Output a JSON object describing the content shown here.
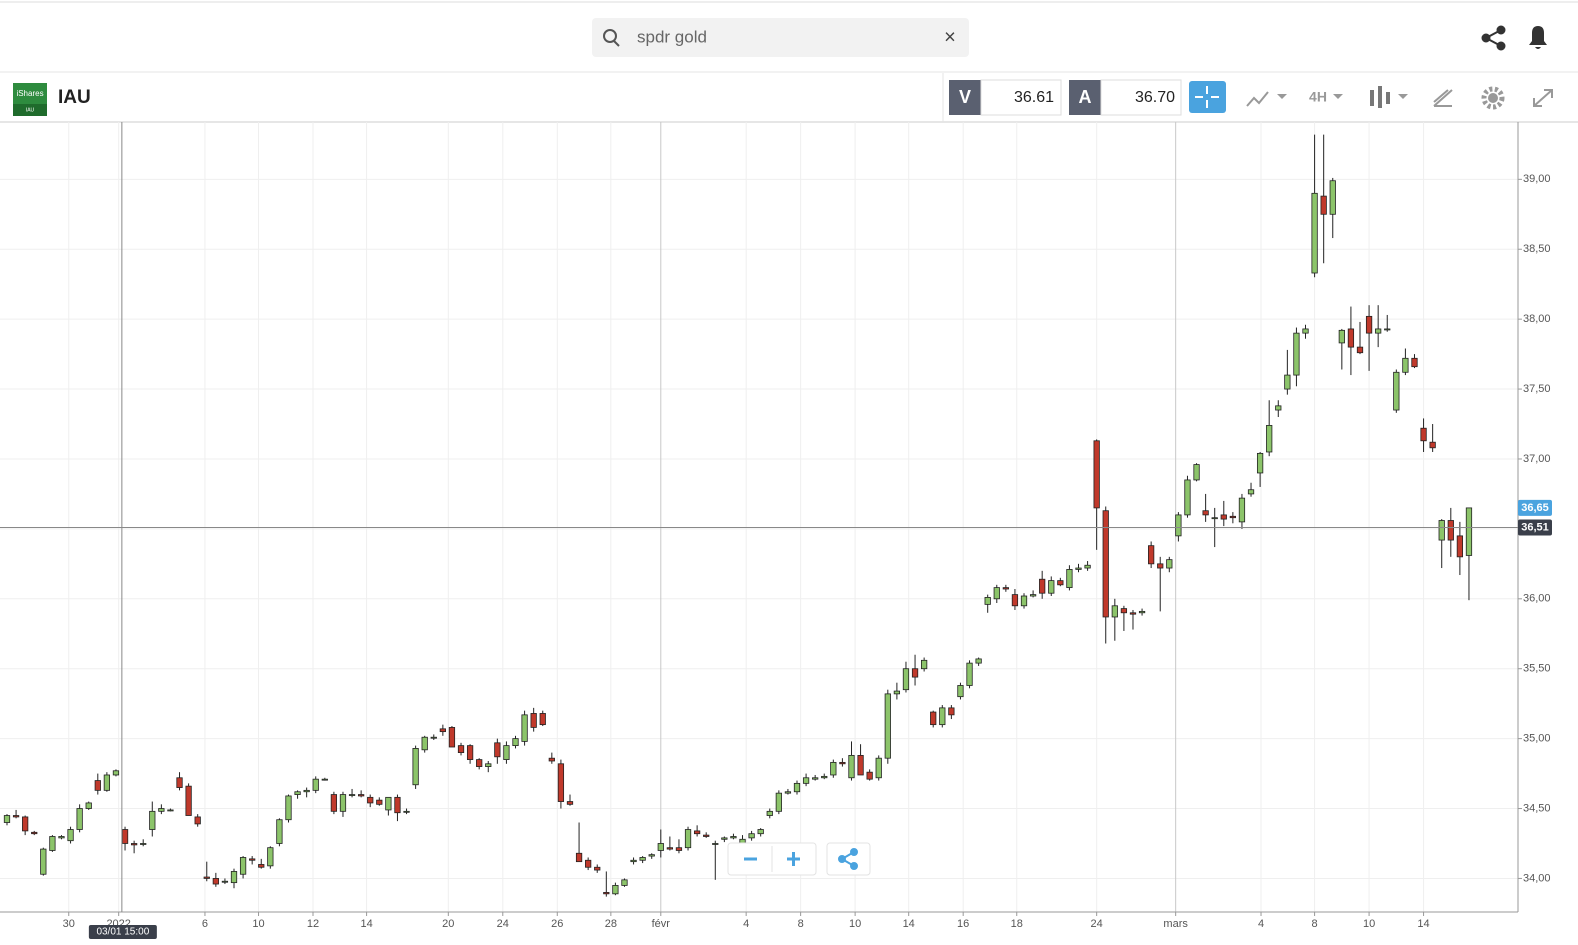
{
  "header": {
    "search_text": "spdr gold",
    "search_clear": "×"
  },
  "instrument": {
    "symbol": "IAU",
    "logo_text": "iShares",
    "logo_sub": "IAU",
    "sell_label": "V",
    "sell_price": "36.61",
    "buy_label": "A",
    "buy_price": "36.70",
    "timeframe": "4H"
  },
  "chart_data": {
    "type": "candlestick",
    "up_color": "#8cc46a",
    "down_color": "#c0392b",
    "grid": true,
    "ylim": [
      33.76,
      39.41
    ],
    "xlim": [
      -0.77,
      166.4
    ],
    "yticks": [
      {
        "value": 34,
        "label": "34,00"
      },
      {
        "value": 34.5,
        "label": "34,50"
      },
      {
        "value": 35,
        "label": "35,00"
      },
      {
        "value": 35.5,
        "label": "35,50"
      },
      {
        "value": 36,
        "label": "36,00"
      },
      {
        "value": 36.5,
        "label": "36,50"
      },
      {
        "value": 37,
        "label": "37,00"
      },
      {
        "value": 37.5,
        "label": "37,50"
      },
      {
        "value": 38,
        "label": "38,00"
      },
      {
        "value": 38.5,
        "label": "38,50"
      },
      {
        "value": 39,
        "label": "39,00"
      }
    ],
    "xticks": [
      {
        "value": 6.8,
        "label": "30"
      },
      {
        "value": 12.3,
        "label": "2022"
      },
      {
        "value": 21.8,
        "label": "6"
      },
      {
        "value": 27.7,
        "label": "10"
      },
      {
        "value": 33.7,
        "label": "12"
      },
      {
        "value": 39.6,
        "label": "14"
      },
      {
        "value": 48.6,
        "label": "20"
      },
      {
        "value": 54.6,
        "label": "24"
      },
      {
        "value": 60.6,
        "label": "26"
      },
      {
        "value": 66.5,
        "label": "28"
      },
      {
        "value": 72,
        "label": "févr"
      },
      {
        "value": 81.4,
        "label": "4"
      },
      {
        "value": 87.4,
        "label": "8"
      },
      {
        "value": 93.4,
        "label": "10"
      },
      {
        "value": 99.3,
        "label": "14"
      },
      {
        "value": 105.3,
        "label": "16"
      },
      {
        "value": 111.2,
        "label": "18"
      },
      {
        "value": 120,
        "label": "24"
      },
      {
        "value": 128.7,
        "label": "mars"
      },
      {
        "value": 138.1,
        "label": "4"
      },
      {
        "value": 144,
        "label": "8"
      },
      {
        "value": 150,
        "label": "10"
      },
      {
        "value": 156,
        "label": "14"
      }
    ],
    "last_price": {
      "value": 36.65,
      "label": "36,65"
    },
    "crosshair": {
      "y": {
        "value": 36.51,
        "label": "36,51"
      },
      "x": {
        "value": 12.65,
        "label": "03/01 15:00"
      }
    },
    "ohlc": [
      [
        34.4,
        34.46,
        34.38,
        34.45
      ],
      [
        34.45,
        34.49,
        34.43,
        34.44
      ],
      [
        34.44,
        34.45,
        34.31,
        34.34
      ],
      [
        34.33,
        34.34,
        34.31,
        34.32
      ],
      [
        34.03,
        34.22,
        34.02,
        34.21
      ],
      [
        34.2,
        34.31,
        34.19,
        34.3
      ],
      [
        34.29,
        34.31,
        34.28,
        34.3
      ],
      [
        34.27,
        34.37,
        34.25,
        34.35
      ],
      [
        34.35,
        34.53,
        34.33,
        34.5
      ],
      [
        34.5,
        34.55,
        34.49,
        34.54
      ],
      [
        34.7,
        34.75,
        34.6,
        34.63
      ],
      [
        34.63,
        34.76,
        34.62,
        34.74
      ],
      [
        34.74,
        34.78,
        34.73,
        34.77
      ],
      [
        34.35,
        34.37,
        34.2,
        34.25
      ],
      [
        34.25,
        34.27,
        34.18,
        34.24
      ],
      [
        34.25,
        34.28,
        34.23,
        34.25
      ],
      [
        34.35,
        34.55,
        34.3,
        34.48
      ],
      [
        34.48,
        34.53,
        34.46,
        34.5
      ],
      [
        34.49,
        34.5,
        34.48,
        34.49
      ],
      [
        34.72,
        34.76,
        34.63,
        34.65
      ],
      [
        34.66,
        34.68,
        34.45,
        34.45
      ],
      [
        34.44,
        34.46,
        34.37,
        34.39
      ],
      [
        34.01,
        34.12,
        33.98,
        34.0
      ],
      [
        34.0,
        34.04,
        33.94,
        33.96
      ],
      [
        33.98,
        34.0,
        33.96,
        33.98
      ],
      [
        33.97,
        34.07,
        33.93,
        34.05
      ],
      [
        34.03,
        34.16,
        34.0,
        34.15
      ],
      [
        34.14,
        34.16,
        34.1,
        34.13
      ],
      [
        34.1,
        34.14,
        34.07,
        34.08
      ],
      [
        34.09,
        34.23,
        34.07,
        34.22
      ],
      [
        34.25,
        34.43,
        34.23,
        34.42
      ],
      [
        34.42,
        34.6,
        34.4,
        34.59
      ],
      [
        34.6,
        34.63,
        34.57,
        34.62
      ],
      [
        34.62,
        34.65,
        34.58,
        34.63
      ],
      [
        34.63,
        34.73,
        34.61,
        34.71
      ],
      [
        34.71,
        34.72,
        34.7,
        34.71
      ],
      [
        34.6,
        34.62,
        34.46,
        34.48
      ],
      [
        34.48,
        34.62,
        34.44,
        34.6
      ],
      [
        34.6,
        34.64,
        34.58,
        34.6
      ],
      [
        34.6,
        34.63,
        34.58,
        34.59
      ],
      [
        34.58,
        34.6,
        34.51,
        34.54
      ],
      [
        34.56,
        34.58,
        34.52,
        34.53
      ],
      [
        34.49,
        34.58,
        34.45,
        34.58
      ],
      [
        34.58,
        34.6,
        34.41,
        34.47
      ],
      [
        34.48,
        34.5,
        34.46,
        34.48
      ],
      [
        34.67,
        34.95,
        34.64,
        34.93
      ],
      [
        34.92,
        35.02,
        34.9,
        35.01
      ],
      [
        35.01,
        35.03,
        34.99,
        35.01
      ],
      [
        35.07,
        35.1,
        35.02,
        35.05
      ],
      [
        35.08,
        35.09,
        34.94,
        34.94
      ],
      [
        34.95,
        34.97,
        34.88,
        34.9
      ],
      [
        34.95,
        34.96,
        34.82,
        34.85
      ],
      [
        34.85,
        34.86,
        34.78,
        34.8
      ],
      [
        34.8,
        34.84,
        34.76,
        34.82
      ],
      [
        34.97,
        35.0,
        34.82,
        34.87
      ],
      [
        34.85,
        34.98,
        34.82,
        34.95
      ],
      [
        34.95,
        35.02,
        34.93,
        35.0
      ],
      [
        34.98,
        35.2,
        34.95,
        35.17
      ],
      [
        35.18,
        35.22,
        35.05,
        35.08
      ],
      [
        35.18,
        35.2,
        35.09,
        35.1
      ],
      [
        34.86,
        34.9,
        34.82,
        34.84
      ],
      [
        34.82,
        34.85,
        34.5,
        34.55
      ],
      [
        34.55,
        34.6,
        34.52,
        34.53
      ],
      [
        34.18,
        34.4,
        34.12,
        34.12
      ],
      [
        34.13,
        34.15,
        34.06,
        34.08
      ],
      [
        34.08,
        34.1,
        34.04,
        34.06
      ],
      [
        33.9,
        34.05,
        33.87,
        33.89
      ],
      [
        33.89,
        33.97,
        33.88,
        33.95
      ],
      [
        33.95,
        34.0,
        33.94,
        33.99
      ],
      [
        34.12,
        34.15,
        34.1,
        34.13
      ],
      [
        34.13,
        34.16,
        34.11,
        34.15
      ],
      [
        34.16,
        34.18,
        34.14,
        34.17
      ],
      [
        34.2,
        34.35,
        34.15,
        34.25
      ],
      [
        34.22,
        34.3,
        34.2,
        34.21
      ],
      [
        34.22,
        34.28,
        34.18,
        34.2
      ],
      [
        34.22,
        34.37,
        34.2,
        34.35
      ],
      [
        34.34,
        34.38,
        34.3,
        34.32
      ],
      [
        34.31,
        34.33,
        34.29,
        34.3
      ],
      [
        34.25,
        34.27,
        33.99,
        34.25
      ],
      [
        34.28,
        34.3,
        34.26,
        34.29
      ],
      [
        34.29,
        34.32,
        34.28,
        34.3
      ],
      [
        34.2,
        34.31,
        34.19,
        34.28
      ],
      [
        34.29,
        34.34,
        34.27,
        34.32
      ],
      [
        34.32,
        34.36,
        34.3,
        34.35
      ],
      [
        34.45,
        34.5,
        34.43,
        34.48
      ],
      [
        34.48,
        34.63,
        34.46,
        34.61
      ],
      [
        34.61,
        34.64,
        34.6,
        34.62
      ],
      [
        34.62,
        34.7,
        34.6,
        34.68
      ],
      [
        34.68,
        34.75,
        34.66,
        34.72
      ],
      [
        34.71,
        34.74,
        34.7,
        34.72
      ],
      [
        34.72,
        34.75,
        34.71,
        34.73
      ],
      [
        34.74,
        34.85,
        34.72,
        34.83
      ],
      [
        34.83,
        34.86,
        34.8,
        34.82
      ],
      [
        34.72,
        34.98,
        34.7,
        34.88
      ],
      [
        34.88,
        34.96,
        34.74,
        34.74
      ],
      [
        34.76,
        34.78,
        34.7,
        34.71
      ],
      [
        34.72,
        34.88,
        34.7,
        34.86
      ],
      [
        34.86,
        35.35,
        34.82,
        35.32
      ],
      [
        35.32,
        35.4,
        35.28,
        35.34
      ],
      [
        35.35,
        35.55,
        35.33,
        35.5
      ],
      [
        35.5,
        35.6,
        35.38,
        35.44
      ],
      [
        35.5,
        35.58,
        35.48,
        35.56
      ],
      [
        35.19,
        35.2,
        35.08,
        35.1
      ],
      [
        35.1,
        35.24,
        35.08,
        35.22
      ],
      [
        35.22,
        35.24,
        35.14,
        35.17
      ],
      [
        35.3,
        35.4,
        35.28,
        35.38
      ],
      [
        35.38,
        35.56,
        35.36,
        35.54
      ],
      [
        35.54,
        35.58,
        35.52,
        35.57
      ],
      [
        35.96,
        36.03,
        35.9,
        36.01
      ],
      [
        36.0,
        36.1,
        35.97,
        36.08
      ],
      [
        36.08,
        36.1,
        36.05,
        36.07
      ],
      [
        36.03,
        36.07,
        35.92,
        35.95
      ],
      [
        35.95,
        36.04,
        35.93,
        36.02
      ],
      [
        36.02,
        36.06,
        36.01,
        36.03
      ],
      [
        36.14,
        36.2,
        36.0,
        36.04
      ],
      [
        36.04,
        36.16,
        36.02,
        36.13
      ],
      [
        36.13,
        36.15,
        36.09,
        36.1
      ],
      [
        36.08,
        36.24,
        36.06,
        36.21
      ],
      [
        36.21,
        36.25,
        36.19,
        36.22
      ],
      [
        36.22,
        36.27,
        36.2,
        36.24
      ],
      [
        37.13,
        37.14,
        36.35,
        36.65
      ],
      [
        36.63,
        36.66,
        35.68,
        35.87
      ],
      [
        35.87,
        36.0,
        35.7,
        35.95
      ],
      [
        35.93,
        35.95,
        35.77,
        35.9
      ],
      [
        35.9,
        35.92,
        35.78,
        35.89
      ],
      [
        35.9,
        35.93,
        35.88,
        35.91
      ],
      [
        36.38,
        36.41,
        36.22,
        36.25
      ],
      [
        36.25,
        36.3,
        35.91,
        36.22
      ],
      [
        36.22,
        36.3,
        36.19,
        36.28
      ],
      [
        36.45,
        36.62,
        36.41,
        36.6
      ],
      [
        36.6,
        36.88,
        36.58,
        36.85
      ],
      [
        36.85,
        36.97,
        36.84,
        36.96
      ],
      [
        36.63,
        36.75,
        36.55,
        36.6
      ],
      [
        36.58,
        36.65,
        36.37,
        36.58
      ],
      [
        36.6,
        36.7,
        36.52,
        36.57
      ],
      [
        36.59,
        36.62,
        36.54,
        36.58
      ],
      [
        36.55,
        36.75,
        36.5,
        36.72
      ],
      [
        36.75,
        36.83,
        36.73,
        36.78
      ],
      [
        36.9,
        37.05,
        36.8,
        37.04
      ],
      [
        37.05,
        37.42,
        37.02,
        37.24
      ],
      [
        37.35,
        37.42,
        37.3,
        37.38
      ],
      [
        37.5,
        37.78,
        37.46,
        37.6
      ],
      [
        37.6,
        37.94,
        37.52,
        37.9
      ],
      [
        37.9,
        37.96,
        37.86,
        37.93
      ],
      [
        38.33,
        39.32,
        38.3,
        38.9
      ],
      [
        38.88,
        39.32,
        38.4,
        38.75
      ],
      [
        38.75,
        39.01,
        38.58,
        38.99
      ],
      [
        37.83,
        37.93,
        37.64,
        37.92
      ],
      [
        37.93,
        38.09,
        37.6,
        37.8
      ],
      [
        37.8,
        37.98,
        37.75,
        37.76
      ],
      [
        38.02,
        38.1,
        37.63,
        37.9
      ],
      [
        37.9,
        38.1,
        37.8,
        37.93
      ],
      [
        37.93,
        38.03,
        37.91,
        37.93
      ],
      [
        37.35,
        37.64,
        37.33,
        37.62
      ],
      [
        37.62,
        37.79,
        37.6,
        37.72
      ],
      [
        37.72,
        37.75,
        37.65,
        37.66
      ],
      [
        37.22,
        37.29,
        37.05,
        37.13
      ],
      [
        37.12,
        37.25,
        37.05,
        37.08
      ],
      [
        36.42,
        36.57,
        36.22,
        36.56
      ],
      [
        36.56,
        36.65,
        36.3,
        36.42
      ],
      [
        36.45,
        36.55,
        36.17,
        36.3
      ],
      [
        36.31,
        36.65,
        35.99,
        36.65
      ]
    ]
  }
}
